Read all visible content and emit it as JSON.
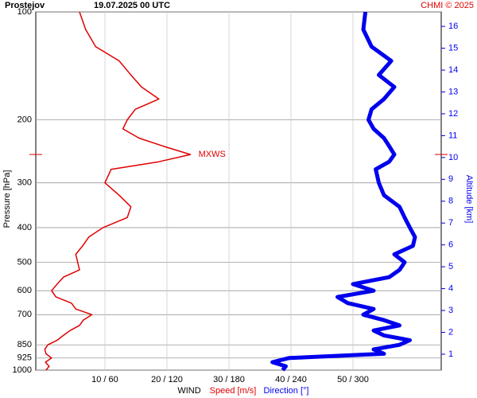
{
  "chart_data": {
    "type": "line",
    "title": "Prostejov",
    "subtitle": "19.07.2025 00 UTC",
    "credit": "CHMI © 2025",
    "ylabel": "Pressure [hPa]",
    "y2label": "Altitude [km]",
    "xlabel": "WIND",
    "annotation": "MXWS",
    "y": [
      1000,
      975,
      950,
      925,
      900,
      875,
      850,
      825,
      800,
      775,
      750,
      725,
      700,
      675,
      650,
      625,
      600,
      575,
      550,
      525,
      500,
      475,
      450,
      425,
      400,
      375,
      350,
      325,
      300,
      275,
      262,
      250,
      237,
      225,
      212,
      200,
      187,
      175,
      162,
      150,
      137,
      125,
      112,
      100
    ],
    "series": [
      {
        "name": "Speed [m/s]",
        "color": "#e00000",
        "axis": "x",
        "values": [
          0.5,
          1.0,
          0.4,
          1.4,
          0.5,
          0.3,
          0.8,
          2.3,
          3.3,
          4.4,
          5.9,
          6.5,
          7.9,
          5.3,
          4.6,
          2.1,
          1.4,
          2.3,
          3.3,
          5.9,
          5.6,
          5.3,
          6.4,
          7.4,
          9.7,
          13.6,
          14.2,
          12.3,
          10.0,
          11.0,
          18.7,
          23.8,
          19.4,
          15.5,
          12.9,
          13.6,
          14.9,
          18.7,
          15.9,
          14.2,
          12.3,
          8.5,
          6.9,
          5.9
        ]
      },
      {
        "name": "Direction [°]",
        "color": "#0000ee",
        "axis": "x2",
        "values": [
          232,
          235,
          222,
          238,
          330,
          320,
          345,
          355,
          330,
          320,
          345,
          330,
          310,
          320,
          295,
          285,
          320,
          300,
          335,
          345,
          350,
          340,
          358,
          360,
          355,
          350,
          345,
          330,
          325,
          322,
          335,
          340,
          335,
          330,
          320,
          315,
          318,
          330,
          340,
          325,
          337,
          318,
          310,
          312
        ]
      }
    ],
    "xlim": [
      -1.15,
      64.23
    ],
    "x2lim": [
      -6.9,
      385.4
    ],
    "xticks": [
      {
        "value": 10,
        "label": "10 / 60"
      },
      {
        "value": 20,
        "label": "20 / 120"
      },
      {
        "value": 30,
        "label": "30 / 180"
      },
      {
        "value": 40,
        "label": "40 / 240"
      },
      {
        "value": 50,
        "label": "50 / 300"
      }
    ],
    "ylim": [
      1000,
      100
    ],
    "ylog": true,
    "yticks": [
      100,
      200,
      300,
      400,
      500,
      600,
      700,
      850,
      925,
      1000
    ],
    "y2lim": [
      0.27,
      16.66
    ],
    "y2ticks": [
      1,
      2,
      3,
      4,
      5,
      6,
      7,
      8,
      9,
      10,
      11,
      12,
      13,
      14,
      15,
      16
    ],
    "grid": true
  }
}
